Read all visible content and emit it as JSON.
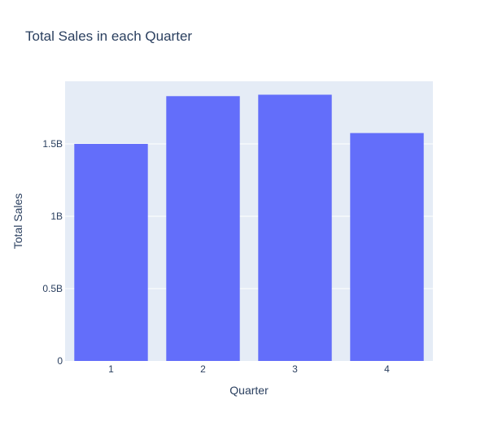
{
  "chart_data": {
    "type": "bar",
    "title": "Total Sales in each Quarter",
    "xlabel": "Quarter",
    "ylabel": "Total Sales",
    "categories": [
      "1",
      "2",
      "3",
      "4"
    ],
    "values": [
      1500000000,
      1830000000,
      1840000000,
      1575000000
    ],
    "ylim": [
      0,
      1932631578
    ],
    "yticks": [
      0,
      500000000,
      1000000000,
      1500000000
    ],
    "ytick_labels": [
      "0",
      "0.5B",
      "1B",
      "1.5B"
    ],
    "grid": true,
    "legend": "none",
    "colors": {
      "bar": "#636efa",
      "plot_bg": "#e5ecf6",
      "grid": "#ffffff",
      "text": "#2a3f5f"
    }
  }
}
